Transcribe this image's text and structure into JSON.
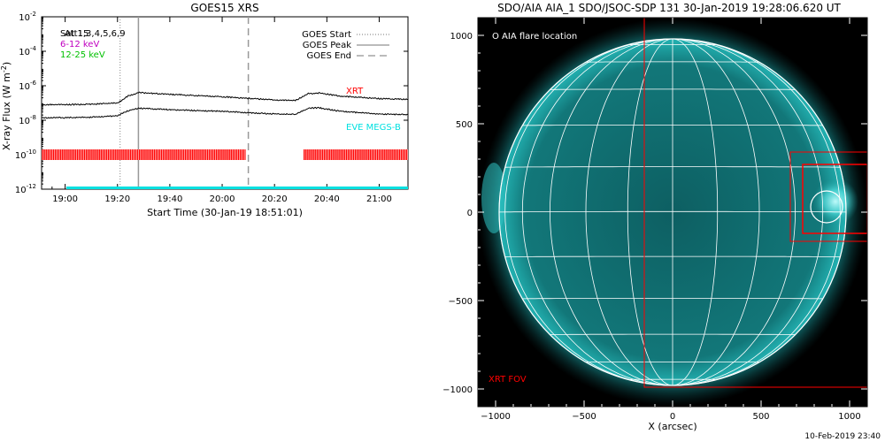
{
  "timestamp": "10-Feb-2019 23:40",
  "chart_data": [
    {
      "type": "line",
      "title": "GOES15 XRS",
      "xlabel": "Start Time (30-Jan-19 18:51:01)",
      "ylabel": "X-ray Flux (W m",
      "ylabel_sup": "-2",
      "ylabel_close": ")",
      "y_scale": "log",
      "ylim": [
        1e-12,
        0.01
      ],
      "xlim": [
        "18:51",
        "21:11"
      ],
      "y_ticks": [
        {
          "base": "10",
          "exp": "-2",
          "v": -2
        },
        {
          "base": "10",
          "exp": "-4",
          "v": -4
        },
        {
          "base": "10",
          "exp": "-6",
          "v": -6
        },
        {
          "base": "10",
          "exp": "-8",
          "v": -8
        },
        {
          "base": "10",
          "exp": "-10",
          "v": -10
        },
        {
          "base": "10",
          "exp": "-12",
          "v": -12
        }
      ],
      "x_ticks": [
        "19:00",
        "19:20",
        "19:40",
        "20:00",
        "20:20",
        "20:40",
        "21:00"
      ],
      "legend_left": [
        {
          "label": "Sat 15",
          "overlay": "Att1,3,4,5,6,9",
          "color": "#000000"
        },
        {
          "label": "6-12 keV",
          "color": "#c000c0"
        },
        {
          "label": "12-25 keV",
          "color": "#00c000"
        }
      ],
      "legend_right": [
        {
          "label": "GOES Start",
          "style": "dotted"
        },
        {
          "label": "GOES Peak",
          "style": "solid"
        },
        {
          "label": "GOES End",
          "style": "dashed"
        }
      ],
      "event_lines": {
        "start": "19:21",
        "peak": "19:28",
        "end": "20:10"
      },
      "coverage_labels": [
        {
          "label": "XRT",
          "color": "#ff0000"
        },
        {
          "label": "EVE MEGS-B",
          "color": "#00e0e0"
        }
      ],
      "series": [
        {
          "x": [
            "18:51",
            "19:00",
            "19:10",
            "19:20",
            "19:24",
            "19:28",
            "19:40",
            "20:00",
            "20:20",
            "20:28",
            "20:33",
            "20:37",
            "20:45",
            "21:00",
            "21:11"
          ],
          "y": [
            8e-08,
            8e-08,
            8.5e-08,
            1e-07,
            2.5e-07,
            4e-07,
            3.2e-07,
            2.3e-07,
            1.5e-07,
            1.4e-07,
            3.5e-07,
            3.8e-07,
            2.5e-07,
            1.8e-07,
            1.6e-07
          ]
        },
        {
          "x": [
            "18:51",
            "19:00",
            "19:10",
            "19:20",
            "19:24",
            "19:28",
            "19:40",
            "20:00",
            "20:20",
            "20:28",
            "20:33",
            "20:37",
            "20:45",
            "21:00",
            "21:11"
          ],
          "y": [
            1.4e-08,
            1.4e-08,
            1.5e-08,
            1.8e-08,
            3.5e-08,
            5e-08,
            4.1e-08,
            3.3e-08,
            2.3e-08,
            2.2e-08,
            5e-08,
            5.3e-08,
            3.3e-08,
            2.3e-08,
            2.1e-08
          ]
        }
      ],
      "xrt_coverage": [
        [
          "18:51",
          "20:09"
        ],
        [
          "20:31",
          "21:11"
        ]
      ],
      "eve_coverage": [
        [
          "18:51",
          "21:11"
        ]
      ],
      "xrt_color": "#ff0000",
      "eve_color": "#00e0e0"
    },
    {
      "type": "image",
      "title": "SDO/AIA AIA_1 SDO/JSOC-SDP 131 30-Jan-2019 19:28:06.620 UT",
      "xlabel": "X (arcsec)",
      "xlim": [
        -1100,
        1100
      ],
      "ylim": [
        -1100,
        1100
      ],
      "x_ticks": [
        "−1000",
        "−500",
        "0",
        "500",
        "1000"
      ],
      "y_ticks": [
        "1000",
        "500",
        "0",
        "−500",
        "−1000"
      ],
      "legend": "O AIA flare location",
      "xrt_fov_label": "XRT FOV",
      "xrt_fov_color": "#ff0000",
      "disk_color": "#0e6f73"
    }
  ]
}
